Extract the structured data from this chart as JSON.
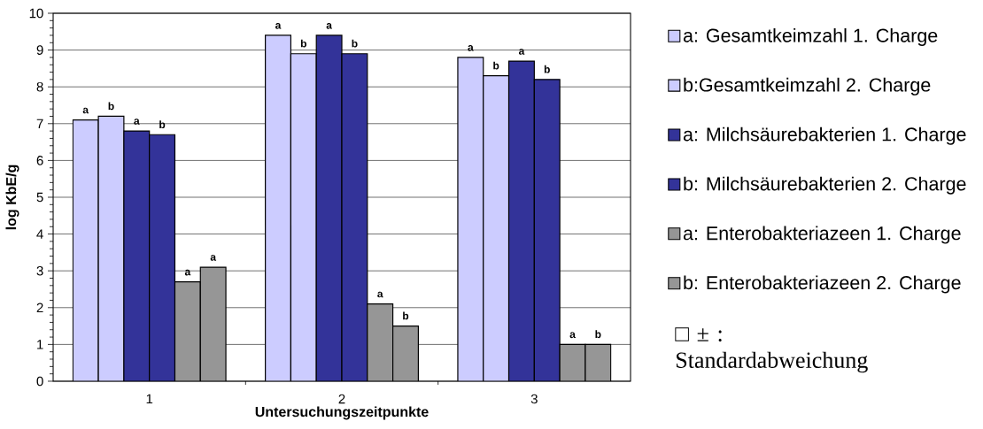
{
  "chart_data": {
    "type": "bar",
    "xlabel": "Untersuchungszeitpunkte",
    "ylabel": "log KbE/g",
    "categories": [
      "1",
      "2",
      "3"
    ],
    "series": [
      {
        "name": "a: Gesamtkeimzahl 1. Charge",
        "color": "#ccccff",
        "values": [
          7.1,
          9.4,
          8.8
        ],
        "value_labels": [
          "a",
          "a",
          "a"
        ]
      },
      {
        "name": "b:Gesamtkeimzahl 2. Charge",
        "color": "#ccccff",
        "values": [
          7.2,
          8.9,
          8.3
        ],
        "value_labels": [
          "b",
          "b",
          "b"
        ]
      },
      {
        "name": "a: Milchsäurebakterien 1. Charge",
        "color": "#333399",
        "values": [
          6.8,
          9.4,
          8.7
        ],
        "value_labels": [
          "a",
          "a",
          "a"
        ]
      },
      {
        "name": "b: Milchsäurebakterien 2. Charge",
        "color": "#333399",
        "values": [
          6.7,
          8.9,
          8.2
        ],
        "value_labels": [
          "b",
          "b",
          "b"
        ]
      },
      {
        "name": "a: Enterobakteriazeen 1. Charge",
        "color": "#969696",
        "values": [
          2.7,
          2.1,
          1.0
        ],
        "value_labels": [
          "a",
          "a",
          "a"
        ]
      },
      {
        "name": "b: Enterobakteriazeen 2. Charge",
        "color": "#969696",
        "values": [
          3.1,
          1.5,
          1.0
        ],
        "value_labels": [
          "a",
          "b",
          "b"
        ]
      }
    ],
    "ylim": [
      0,
      10
    ],
    "yticks": [
      0,
      1,
      2,
      3,
      4,
      5,
      6,
      7,
      8,
      9,
      10
    ],
    "grid": "y",
    "legend": "right",
    "annotations": [
      "□ ± : Standardabweichung"
    ]
  }
}
